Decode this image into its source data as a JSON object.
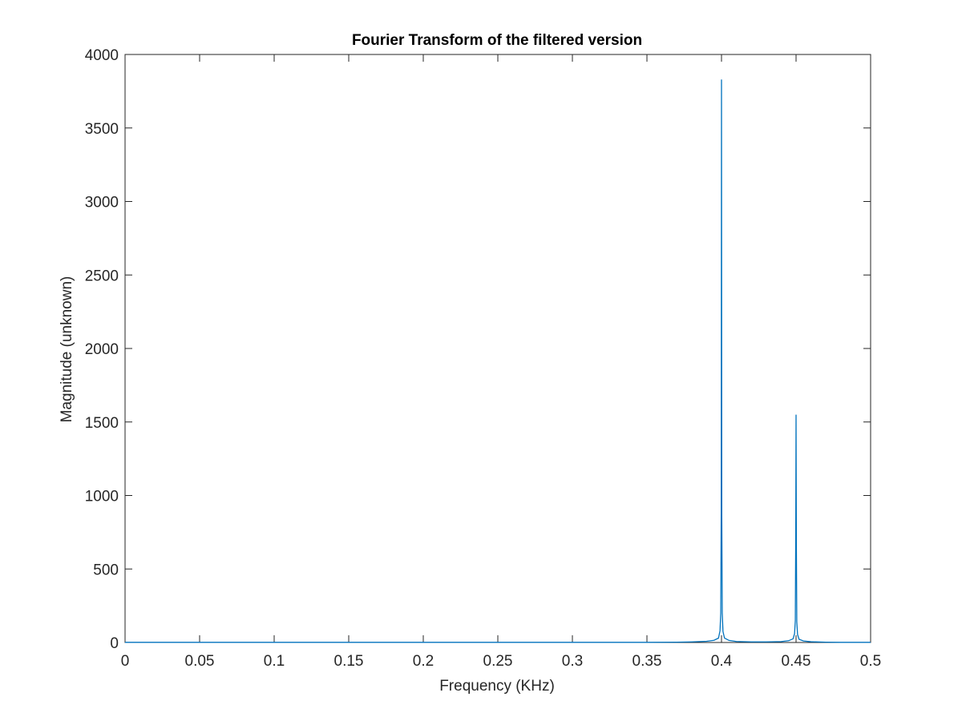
{
  "chart_data": {
    "type": "line",
    "title": "Fourier Transform of the filtered version",
    "xlabel": "Frequency (KHz)",
    "ylabel": "Magnitude (unknown)",
    "xlim": [
      0,
      0.5
    ],
    "ylim": [
      0,
      4000
    ],
    "xticks": [
      0,
      0.05,
      0.1,
      0.15,
      0.2,
      0.25,
      0.3,
      0.35,
      0.4,
      0.45,
      0.5
    ],
    "xtick_labels": [
      "0",
      "0.05",
      "0.1",
      "0.15",
      "0.2",
      "0.25",
      "0.3",
      "0.35",
      "0.4",
      "0.45",
      "0.5"
    ],
    "yticks": [
      0,
      500,
      1000,
      1500,
      2000,
      2500,
      3000,
      3500,
      4000
    ],
    "ytick_labels": [
      "0",
      "500",
      "1000",
      "1500",
      "2000",
      "2500",
      "3000",
      "3500",
      "4000"
    ],
    "grid": false,
    "legend": "none",
    "line_color": "#0072BD",
    "axis_color": "#262626",
    "series": [
      {
        "x": [
          0,
          0.1,
          0.2,
          0.3,
          0.35,
          0.37,
          0.38,
          0.39,
          0.395,
          0.398,
          0.399,
          0.3995,
          0.3998,
          0.4,
          0.4002,
          0.4005,
          0.401,
          0.402,
          0.405,
          0.41,
          0.42,
          0.43,
          0.44,
          0.445,
          0.448,
          0.449,
          0.4495,
          0.4498,
          0.45,
          0.4502,
          0.4505,
          0.451,
          0.452,
          0.455,
          0.46,
          0.47,
          0.48,
          0.5
        ],
        "y": [
          1,
          1,
          1,
          1,
          1,
          2,
          4,
          8,
          15,
          30,
          80,
          200,
          880,
          3830,
          860,
          200,
          75,
          30,
          14,
          7,
          4,
          4,
          6,
          12,
          25,
          60,
          150,
          750,
          1550,
          700,
          140,
          55,
          22,
          10,
          5,
          2,
          1,
          1
        ]
      }
    ]
  }
}
